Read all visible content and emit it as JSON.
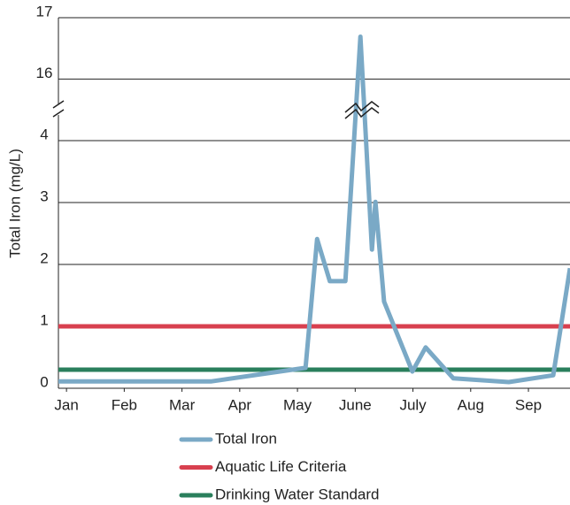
{
  "chart_data": {
    "type": "line",
    "y_label": "Total Iron (mg/L)",
    "ylim": [
      0,
      4.5
    ],
    "yticks": [
      0,
      1,
      2,
      3,
      4
    ],
    "y_break": {
      "ylim": [
        15.5,
        17
      ],
      "yticks": [
        16,
        17
      ]
    },
    "xlim": [
      -0.14,
      8.72
    ],
    "xticks": [
      {
        "value": 0,
        "label": "Jan"
      },
      {
        "value": 1,
        "label": "Feb"
      },
      {
        "value": 2,
        "label": "Mar"
      },
      {
        "value": 3,
        "label": "Apr"
      },
      {
        "value": 4,
        "label": "May"
      },
      {
        "value": 5,
        "label": "June"
      },
      {
        "value": 6,
        "label": "July"
      },
      {
        "value": 7,
        "label": "Aug"
      },
      {
        "value": 8,
        "label": "Sep"
      }
    ],
    "grid": true,
    "series": [
      {
        "name": "Total Iron",
        "color": "#7aa9c6",
        "x": [
          -0.14,
          2.5,
          4.14,
          4.34,
          4.56,
          4.83,
          5.09,
          5.29,
          5.35,
          5.5,
          5.99,
          6.22,
          6.7,
          7.66,
          8.43,
          8.72
        ],
        "values": [
          0.11,
          0.11,
          0.33,
          2.41,
          1.73,
          1.73,
          16.69,
          2.24,
          3.01,
          1.4,
          0.27,
          0.66,
          0.16,
          0.1,
          0.21,
          1.94
        ]
      },
      {
        "name": "Aquatic Life Criteria",
        "color": "#d8404f",
        "x": [
          -0.14,
          8.72
        ],
        "values": [
          1,
          1
        ]
      },
      {
        "name": "Drinking Water Standard",
        "color": "#2a7f5c",
        "x": [
          -0.14,
          8.72
        ],
        "values": [
          0.3,
          0.3
        ]
      }
    ]
  }
}
